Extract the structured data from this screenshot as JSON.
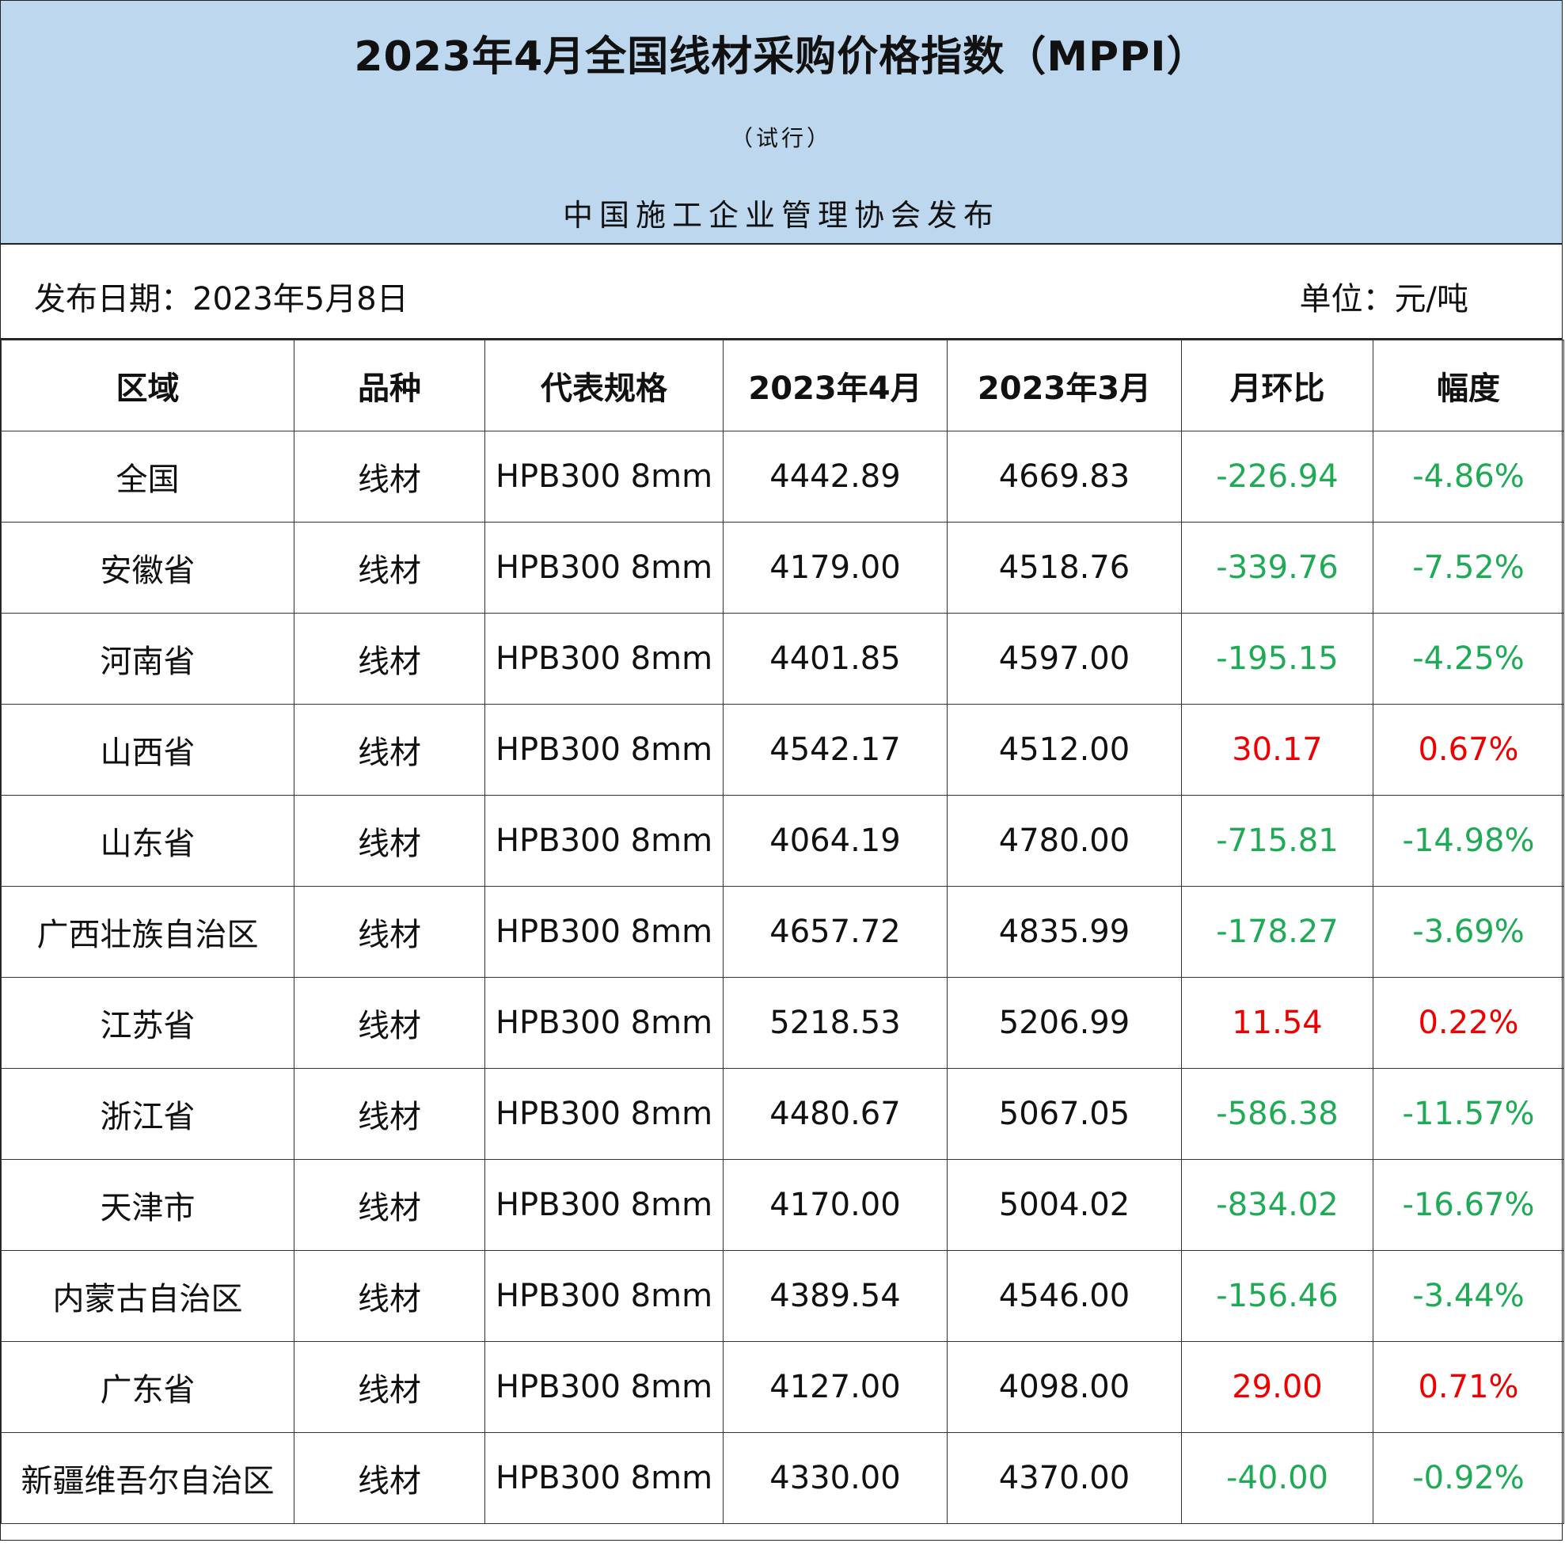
{
  "header": {
    "title": "2023年4月全国线材采购价格指数（MPPI）",
    "subtitle": "（试行）",
    "publisher": "中国施工企业管理协会发布"
  },
  "meta": {
    "date": "发布日期：2023年5月8日",
    "unit": "单位：元/吨"
  },
  "colors": {
    "banner": "#bdd7ee",
    "increase": "#ee0000",
    "decrease": "#1faa55"
  },
  "table": {
    "columns": [
      "区域",
      "品种",
      "代表规格",
      "2023年4月",
      "2023年3月",
      "月环比",
      "幅度"
    ],
    "rows": [
      {
        "region": "全国",
        "variety": "线材",
        "spec": "HPB300 8mm",
        "apr": "4442.89",
        "mar": "4669.83",
        "mom": "-226.94",
        "pct": "-4.86%"
      },
      {
        "region": "安徽省",
        "variety": "线材",
        "spec": "HPB300 8mm",
        "apr": "4179.00",
        "mar": "4518.76",
        "mom": "-339.76",
        "pct": "-7.52%"
      },
      {
        "region": "河南省",
        "variety": "线材",
        "spec": "HPB300 8mm",
        "apr": "4401.85",
        "mar": "4597.00",
        "mom": "-195.15",
        "pct": "-4.25%"
      },
      {
        "region": "山西省",
        "variety": "线材",
        "spec": "HPB300 8mm",
        "apr": "4542.17",
        "mar": "4512.00",
        "mom": "30.17",
        "pct": "0.67%"
      },
      {
        "region": "山东省",
        "variety": "线材",
        "spec": "HPB300 8mm",
        "apr": "4064.19",
        "mar": "4780.00",
        "mom": "-715.81",
        "pct": "-14.98%"
      },
      {
        "region": "广西壮族自治区",
        "variety": "线材",
        "spec": "HPB300 8mm",
        "apr": "4657.72",
        "mar": "4835.99",
        "mom": "-178.27",
        "pct": "-3.69%"
      },
      {
        "region": "江苏省",
        "variety": "线材",
        "spec": "HPB300 8mm",
        "apr": "5218.53",
        "mar": "5206.99",
        "mom": "11.54",
        "pct": "0.22%"
      },
      {
        "region": "浙江省",
        "variety": "线材",
        "spec": "HPB300 8mm",
        "apr": "4480.67",
        "mar": "5067.05",
        "mom": "-586.38",
        "pct": "-11.57%"
      },
      {
        "region": "天津市",
        "variety": "线材",
        "spec": "HPB300 8mm",
        "apr": "4170.00",
        "mar": "5004.02",
        "mom": "-834.02",
        "pct": "-16.67%"
      },
      {
        "region": "内蒙古自治区",
        "variety": "线材",
        "spec": "HPB300 8mm",
        "apr": "4389.54",
        "mar": "4546.00",
        "mom": "-156.46",
        "pct": "-3.44%"
      },
      {
        "region": "广东省",
        "variety": "线材",
        "spec": "HPB300 8mm",
        "apr": "4127.00",
        "mar": "4098.00",
        "mom": "29.00",
        "pct": "0.71%"
      },
      {
        "region": "新疆维吾尔自治区",
        "variety": "线材",
        "spec": "HPB300 8mm",
        "apr": "4330.00",
        "mar": "4370.00",
        "mom": "-40.00",
        "pct": "-0.92%"
      }
    ]
  }
}
